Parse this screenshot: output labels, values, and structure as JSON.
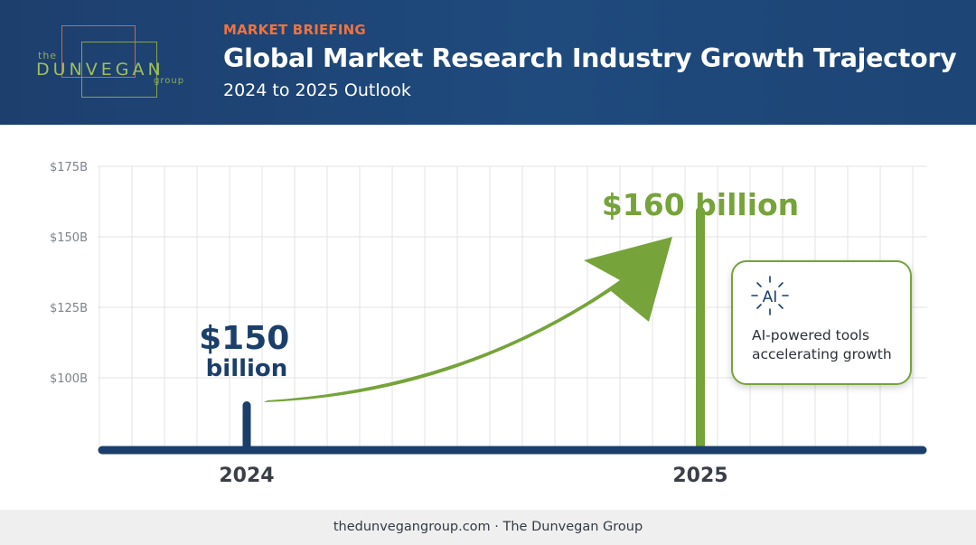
{
  "header": {
    "logo": {
      "the": "the",
      "name": "DUNVEGAN",
      "group": "group"
    },
    "kicker": "MARKET BRIEFING",
    "title": "Global Market Research Industry Growth Trajectory",
    "subtitle": "2024 to 2025 Outlook"
  },
  "chart_data": {
    "type": "bar",
    "categories": [
      "2024",
      "2025"
    ],
    "values": [
      150,
      160
    ],
    "value_labels": [
      "$150 billion",
      "$160 billion"
    ],
    "y_tick_labels": [
      "$100B",
      "$125B",
      "$150B",
      "$175B"
    ],
    "y_ticks": [
      100,
      125,
      150,
      175
    ],
    "grid": true,
    "annotation": {
      "icon": "ai-spark-icon",
      "badge": "AI",
      "text_line1": "AI-powered tools",
      "text_line2": "accelerating growth"
    },
    "colors": {
      "navy": "#1b3f6b",
      "green": "#76a33a",
      "grid": "#e3e3e3"
    }
  },
  "footer": {
    "text": "thedunvegangroup.com · The Dunvegan Group"
  }
}
